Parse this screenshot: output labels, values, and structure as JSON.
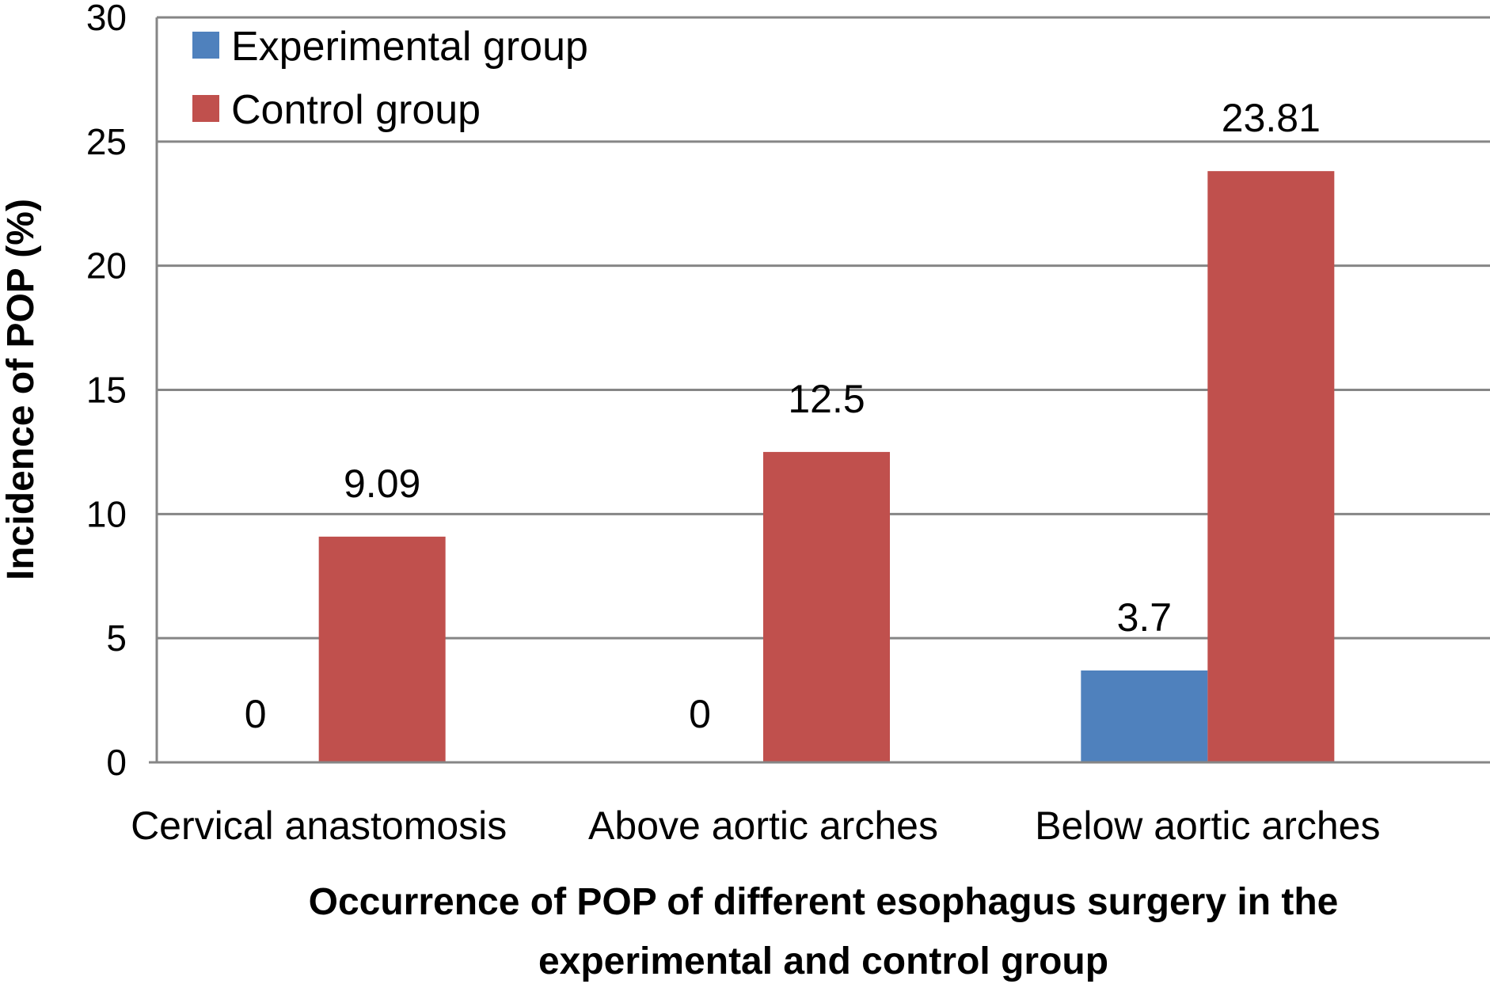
{
  "chart_data": {
    "type": "bar",
    "categories": [
      "Cervical anastomosis",
      "Above aortic arches",
      "Below aortic arches"
    ],
    "series": [
      {
        "name": "Experimental group",
        "values": [
          0,
          0,
          3.7
        ],
        "labels": [
          "0",
          "0",
          "3.7"
        ],
        "color": "#4F81BD"
      },
      {
        "name": "Control group",
        "values": [
          9.09,
          12.5,
          23.81
        ],
        "labels": [
          "9.09",
          "12.5",
          "23.81"
        ],
        "color": "#C0504D"
      }
    ],
    "ylim": [
      0,
      30
    ],
    "yticks": [
      "0",
      "5",
      "10",
      "15",
      "20",
      "25",
      "30"
    ],
    "ylabel": "Incidence of POP (%)",
    "xlabel_lines": [
      "Occurrence of POP of different esophagus surgery in the",
      "experimental  and control group"
    ],
    "grid": true,
    "legend_position": "top-left"
  }
}
